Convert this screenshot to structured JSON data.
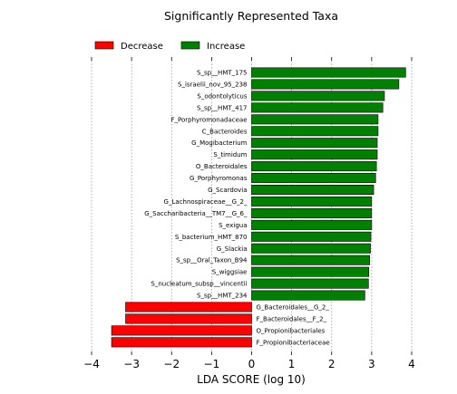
{
  "chart_data": {
    "type": "bar",
    "orientation": "horizontal",
    "title": "Significantly Represented Taxa",
    "xlabel": "LDA SCORE (log 10)",
    "ylabel": "",
    "xlim": [
      -4,
      4
    ],
    "xticks": [
      -4,
      -3,
      -2,
      -1,
      0,
      1,
      2,
      3,
      4
    ],
    "xtick_labels": [
      "−4",
      "−3",
      "−2",
      "−1",
      "0",
      "1",
      "2",
      "3",
      "4"
    ],
    "grid": "vertical dotted",
    "legend_position": "top-left",
    "series": [
      {
        "name": "Decrease",
        "color": "#ff0000"
      },
      {
        "name": "Increase",
        "color": "#008000"
      }
    ],
    "categories": [
      "S_sp__HMT_175",
      "S_israelii_nov_95_238",
      "S_odontolyticus",
      "S_sp__HMT_417",
      "F_Porphyromonadaceae",
      "C_Bacteroides",
      "G_Mogibacterium",
      "S_timidum",
      "O_Bacteroidales",
      "G_Porphyromonas",
      "G_Scardovia",
      "G_Lachnospiraceae__G_2_",
      "G_Saccharibacteria__TM7__G_6_",
      "S_exigua",
      "S_bacterium_HMT_870",
      "G_Slackia",
      "S_sp__Oral_Taxon_B94",
      "S_wiggsiae",
      "S_nucleatum_subsp__vincentii",
      "S_sp__HMT_234",
      "G_Bacteroidales__G_2_",
      "F_Bacteroidales__F_2_",
      "O_Propionibacteriales",
      "F_Propionibacteriaceae"
    ],
    "values": [
      3.85,
      3.68,
      3.32,
      3.28,
      3.16,
      3.16,
      3.14,
      3.14,
      3.12,
      3.1,
      3.05,
      3.0,
      3.0,
      3.0,
      2.98,
      2.97,
      2.95,
      2.93,
      2.92,
      2.83,
      -3.15,
      -3.15,
      -3.5,
      -3.5
    ],
    "groups": [
      "Increase",
      "Increase",
      "Increase",
      "Increase",
      "Increase",
      "Increase",
      "Increase",
      "Increase",
      "Increase",
      "Increase",
      "Increase",
      "Increase",
      "Increase",
      "Increase",
      "Increase",
      "Increase",
      "Increase",
      "Increase",
      "Increase",
      "Increase",
      "Decrease",
      "Decrease",
      "Decrease",
      "Decrease"
    ]
  }
}
